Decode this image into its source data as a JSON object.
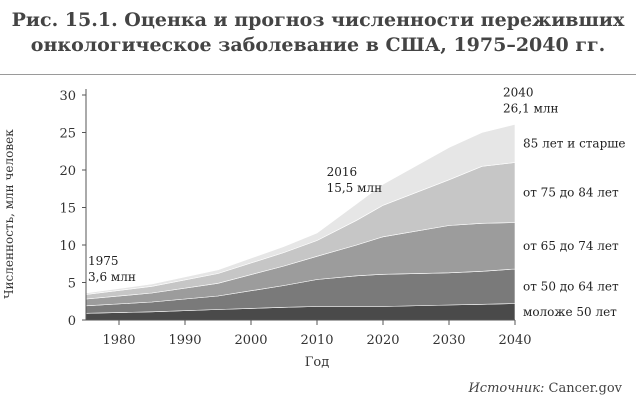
{
  "title_line1": "Рис. 15.1. Оценка и прогноз численности переживших",
  "title_line2": "онкологическое заболевание в США, 1975–2040 гг.",
  "source_label": "Источник:",
  "source_value": "Cancer.gov",
  "chart_data": {
    "type": "area",
    "stacked": true,
    "xlabel": "Год",
    "ylabel": "Численность, млн человек",
    "xlim": [
      1975,
      2040
    ],
    "ylim": [
      0,
      30
    ],
    "xticks": [
      1980,
      1990,
      2000,
      2010,
      2020,
      2030,
      2040
    ],
    "yticks": [
      0,
      5,
      10,
      15,
      20,
      25,
      30
    ],
    "x": [
      1975,
      1985,
      1995,
      2005,
      2010,
      2016,
      2020,
      2030,
      2035,
      2040
    ],
    "series": [
      {
        "name": "моложе 50 лет",
        "color": "#4a4a4a",
        "values": [
          0.9,
          1.1,
          1.4,
          1.7,
          1.8,
          1.8,
          1.8,
          2.0,
          2.1,
          2.2
        ]
      },
      {
        "name": "от 50 до 64 лет",
        "color": "#7a7a7a",
        "values": [
          1.0,
          1.3,
          1.8,
          2.9,
          3.6,
          4.1,
          4.3,
          4.3,
          4.4,
          4.6
        ]
      },
      {
        "name": "от 65 до 74 лет",
        "color": "#9c9c9c",
        "values": [
          0.9,
          1.2,
          1.7,
          2.6,
          3.1,
          4.1,
          5.0,
          6.3,
          6.4,
          6.2
        ]
      },
      {
        "name": "от 75 до 84 лет",
        "color": "#c6c6c6",
        "values": [
          0.6,
          0.9,
          1.3,
          1.8,
          2.1,
          3.3,
          4.2,
          6.1,
          7.6,
          8.0
        ]
      },
      {
        "name": "85 лет и старше",
        "color": "#e6e6e6",
        "values": [
          0.2,
          0.3,
          0.5,
          0.8,
          1.0,
          2.2,
          2.8,
          4.3,
          4.5,
          5.1
        ]
      }
    ],
    "annotations": [
      {
        "year_label": "1975",
        "value_label": "3,6 млн",
        "x": 1975,
        "y": 3.6
      },
      {
        "year_label": "2016",
        "value_label": "15,5 млн",
        "x": 2016,
        "y": 15.5
      },
      {
        "year_label": "2040",
        "value_label": "26,1 млн",
        "x": 2040,
        "y": 26.1
      }
    ]
  }
}
